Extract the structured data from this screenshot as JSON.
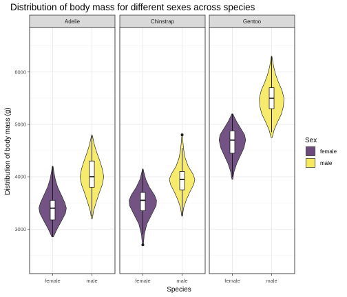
{
  "chart_data": {
    "type": "violin",
    "title": "Distribution of body mass for different sexes across species",
    "xlabel": "Species",
    "ylabel": "Distribution of body mass (g)",
    "ylim": [
      2150,
      6850
    ],
    "yticks": [
      3000,
      4000,
      5000,
      6000
    ],
    "grid": true,
    "legend": {
      "title": "Sex",
      "position": "right",
      "entries": [
        {
          "label": "female",
          "color": "#6c4a7c"
        },
        {
          "label": "male",
          "color": "#f6e95e"
        }
      ]
    },
    "facets": [
      {
        "name": "Adelie",
        "groups": [
          {
            "category": "female",
            "min": 2850,
            "max": 4200,
            "q1": 3175,
            "median": 3400,
            "q3": 3550,
            "whisker_low": 2850,
            "whisker_high": 4200,
            "outliers": [],
            "density": [
              [
                2850,
                0.05
              ],
              [
                3000,
                0.3
              ],
              [
                3150,
                0.6
              ],
              [
                3300,
                0.88
              ],
              [
                3400,
                0.95
              ],
              [
                3500,
                0.85
              ],
              [
                3650,
                0.6
              ],
              [
                3800,
                0.35
              ],
              [
                3950,
                0.18
              ],
              [
                4100,
                0.08
              ],
              [
                4200,
                0.03
              ]
            ]
          },
          {
            "category": "male",
            "min": 3200,
            "max": 4800,
            "q1": 3800,
            "median": 4000,
            "q3": 4300,
            "whisker_low": 3250,
            "whisker_high": 4775,
            "outliers": [],
            "density": [
              [
                3200,
                0.03
              ],
              [
                3350,
                0.12
              ],
              [
                3500,
                0.28
              ],
              [
                3700,
                0.52
              ],
              [
                3850,
                0.72
              ],
              [
                4000,
                0.82
              ],
              [
                4150,
                0.72
              ],
              [
                4300,
                0.55
              ],
              [
                4450,
                0.35
              ],
              [
                4600,
                0.18
              ],
              [
                4750,
                0.06
              ],
              [
                4800,
                0.02
              ]
            ]
          }
        ]
      },
      {
        "name": "Chinstrap",
        "groups": [
          {
            "category": "female",
            "min": 2700,
            "max": 4150,
            "q1": 3350,
            "median": 3550,
            "q3": 3700,
            "whisker_low": 2900,
            "whisker_high": 4150,
            "outliers": [
              2700
            ],
            "density": [
              [
                2700,
                0.03
              ],
              [
                2900,
                0.1
              ],
              [
                3100,
                0.28
              ],
              [
                3300,
                0.65
              ],
              [
                3450,
                0.92
              ],
              [
                3550,
                0.95
              ],
              [
                3650,
                0.8
              ],
              [
                3800,
                0.45
              ],
              [
                3950,
                0.2
              ],
              [
                4100,
                0.06
              ],
              [
                4150,
                0.02
              ]
            ]
          },
          {
            "category": "male",
            "min": 3250,
            "max": 4800,
            "q1": 3750,
            "median": 3950,
            "q3": 4100,
            "whisker_low": 3250,
            "whisker_high": 4550,
            "outliers": [
              4800
            ],
            "density": [
              [
                3250,
                0.03
              ],
              [
                3400,
                0.1
              ],
              [
                3550,
                0.28
              ],
              [
                3700,
                0.52
              ],
              [
                3850,
                0.8
              ],
              [
                3950,
                0.88
              ],
              [
                4050,
                0.75
              ],
              [
                4200,
                0.42
              ],
              [
                4350,
                0.22
              ],
              [
                4500,
                0.12
              ],
              [
                4650,
                0.06
              ],
              [
                4800,
                0.02
              ]
            ]
          }
        ]
      },
      {
        "name": "Gentoo",
        "groups": [
          {
            "category": "female",
            "min": 3950,
            "max": 5200,
            "q1": 4450,
            "median": 4700,
            "q3": 4875,
            "whisker_low": 4000,
            "whisker_high": 5200,
            "outliers": [],
            "density": [
              [
                3950,
                0.03
              ],
              [
                4100,
                0.12
              ],
              [
                4250,
                0.3
              ],
              [
                4400,
                0.55
              ],
              [
                4550,
                0.8
              ],
              [
                4700,
                0.92
              ],
              [
                4800,
                0.85
              ],
              [
                4950,
                0.52
              ],
              [
                5050,
                0.3
              ],
              [
                5150,
                0.12
              ],
              [
                5200,
                0.04
              ]
            ]
          },
          {
            "category": "male",
            "min": 4750,
            "max": 6300,
            "q1": 5300,
            "median": 5500,
            "q3": 5700,
            "whisker_low": 4850,
            "whisker_high": 6300,
            "outliers": [],
            "density": [
              [
                4750,
                0.04
              ],
              [
                4900,
                0.18
              ],
              [
                5050,
                0.42
              ],
              [
                5200,
                0.68
              ],
              [
                5350,
                0.82
              ],
              [
                5500,
                0.85
              ],
              [
                5650,
                0.72
              ],
              [
                5800,
                0.48
              ],
              [
                5950,
                0.28
              ],
              [
                6100,
                0.14
              ],
              [
                6250,
                0.05
              ],
              [
                6300,
                0.02
              ]
            ]
          }
        ]
      }
    ]
  }
}
